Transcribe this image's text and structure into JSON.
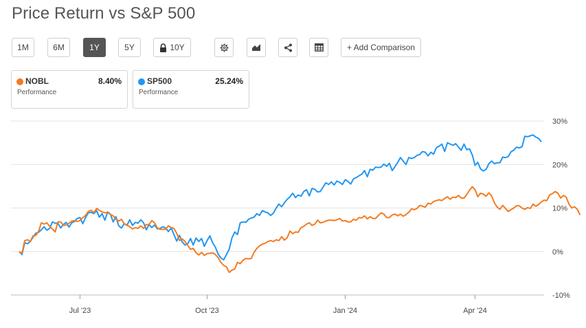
{
  "title": "Price Return vs S&P 500",
  "toolbar": {
    "periods": [
      "1M",
      "6M",
      "1Y",
      "5Y",
      "10Y"
    ],
    "active_period": "1Y",
    "locked_period": "10Y",
    "icons": [
      "gear-icon",
      "area-chart-icon",
      "share-icon",
      "table-icon"
    ],
    "add_comparison_label": "+ Add Comparison"
  },
  "cards": [
    {
      "symbol": "NOBL",
      "value": "8.40%",
      "label": "Performance",
      "color": "#f47b20"
    },
    {
      "symbol": "SP500",
      "value": "25.24%",
      "label": "Performance",
      "color": "#2196f3"
    }
  ],
  "chart_data": {
    "type": "line",
    "y_ticks": [
      "30%",
      "20%",
      "10%",
      "0%",
      "-10%"
    ],
    "x_ticks": [
      {
        "label": "Jul '23",
        "index": 22
      },
      {
        "label": "Oct '23",
        "index": 68
      },
      {
        "label": "Jan '24",
        "index": 118
      },
      {
        "label": "Apr '24",
        "index": 165
      }
    ],
    "ylim": [
      -10,
      30
    ],
    "grid": true,
    "series": [
      {
        "name": "SP500",
        "color": "#2196f3",
        "values": [
          0.0,
          -0.7,
          2.0,
          1.8,
          2.3,
          3.3,
          4.2,
          4.4,
          5.0,
          5.7,
          4.9,
          5.3,
          6.8,
          6.5,
          6.5,
          5.4,
          6.2,
          6.7,
          5.6,
          6.6,
          6.9,
          7.6,
          7.8,
          6.4,
          7.8,
          8.9,
          9.0,
          8.7,
          9.4,
          7.9,
          8.7,
          7.2,
          9.1,
          8.6,
          6.8,
          8.0,
          5.9,
          5.4,
          6.4,
          6.0,
          7.3,
          6.0,
          6.7,
          6.5,
          7.3,
          6.6,
          5.0,
          6.2,
          5.5,
          6.1,
          5.2,
          5.3,
          5.7,
          5.4,
          4.6,
          5.4,
          3.9,
          2.4,
          3.7,
          2.2,
          1.5,
          1.8,
          3.0,
          1.5,
          3.1,
          2.3,
          3.0,
          1.2,
          2.5,
          3.6,
          2.0,
          1.0,
          -0.6,
          -1.5,
          -1.9,
          -0.7,
          0.5,
          3.1,
          4.5,
          3.9,
          6.6,
          6.8,
          6.7,
          7.4,
          7.7,
          7.9,
          8.7,
          8.3,
          9.4,
          9.1,
          8.9,
          8.3,
          8.8,
          10.0,
          10.9,
          10.3,
          11.2,
          12.0,
          12.6,
          13.4,
          12.4,
          13.0,
          12.7,
          13.8,
          14.2,
          12.8,
          14.5,
          14.3,
          13.7,
          13.8,
          14.8,
          15.8,
          15.4,
          16.0,
          15.3,
          16.2,
          15.9,
          15.4,
          16.5,
          16.1,
          15.5,
          16.7,
          17.0,
          17.4,
          17.8,
          18.6,
          17.2,
          18.9,
          18.7,
          19.4,
          19.3,
          19.4,
          20.1,
          19.6,
          20.3,
          18.6,
          19.5,
          20.5,
          21.6,
          20.8,
          20.0,
          21.6,
          21.4,
          21.6,
          22.1,
          22.3,
          23.0,
          22.8,
          22.0,
          22.8,
          22.4,
          23.9,
          24.2,
          24.7,
          23.0,
          25.0,
          24.7,
          24.4,
          24.8,
          24.0,
          23.3,
          24.7,
          23.4,
          23.6,
          22.2,
          19.8,
          20.5,
          19.0,
          18.5,
          18.9,
          20.2,
          20.8,
          20.2,
          20.4,
          20.4,
          21.7,
          21.6,
          21.8,
          22.9,
          23.3,
          24.0,
          23.8,
          24.1,
          26.5,
          26.4,
          26.6,
          26.8,
          26.3,
          26.0,
          25.2
        ]
      },
      {
        "name": "NOBL",
        "color": "#f47b20",
        "values": [
          0.0,
          -0.4,
          2.5,
          2.7,
          2.3,
          3.6,
          3.7,
          4.6,
          6.6,
          6.3,
          6.6,
          5.8,
          5.2,
          4.5,
          6.8,
          6.8,
          6.0,
          6.1,
          6.5,
          7.0,
          7.1,
          6.9,
          7.1,
          7.8,
          8.3,
          9.2,
          9.5,
          8.9,
          9.9,
          9.5,
          9.1,
          8.9,
          9.0,
          8.5,
          8.2,
          7.4,
          7.0,
          7.4,
          6.4,
          6.1,
          5.7,
          5.2,
          5.5,
          5.3,
          5.9,
          5.3,
          6.2,
          6.2,
          7.1,
          6.6,
          5.4,
          5.1,
          5.1,
          5.1,
          5.9,
          5.5,
          5.3,
          4.2,
          2.5,
          2.9,
          2.3,
          1.4,
          0.5,
          0.7,
          -0.3,
          -0.8,
          -0.2,
          -0.9,
          -0.5,
          -0.4,
          -0.3,
          -0.7,
          -1.4,
          -2.5,
          -3.2,
          -3.5,
          -4.8,
          -4.3,
          -4.0,
          -2.5,
          -2.8,
          -2.0,
          -1.6,
          -1.7,
          -1.6,
          -0.2,
          0.7,
          1.3,
          1.7,
          1.9,
          2.3,
          2.5,
          2.3,
          2.7,
          2.5,
          3.4,
          2.6,
          3.2,
          4.7,
          4.1,
          4.5,
          4.4,
          5.5,
          5.8,
          6.3,
          6.6,
          6.0,
          6.3,
          7.2,
          6.6,
          6.7,
          7.0,
          7.2,
          7.2,
          7.1,
          7.3,
          7.6,
          7.0,
          7.1,
          6.8,
          6.8,
          7.4,
          7.2,
          7.8,
          7.7,
          8.2,
          7.5,
          8.0,
          7.6,
          7.6,
          8.3,
          8.9,
          8.6,
          7.8,
          7.8,
          8.4,
          8.6,
          8.2,
          8.6,
          8.1,
          8.5,
          9.0,
          9.8,
          9.6,
          9.9,
          10.6,
          10.4,
          10.2,
          11.1,
          10.9,
          11.5,
          11.7,
          11.9,
          11.7,
          12.2,
          12.6,
          12.0,
          12.5,
          12.4,
          12.9,
          12.3,
          12.3,
          13.1,
          14.1,
          14.9,
          14.2,
          12.6,
          13.4,
          13.2,
          12.7,
          13.5,
          12.8,
          11.2,
          10.2,
          9.7,
          10.6,
          9.9,
          9.2,
          9.6,
          10.0,
          10.5,
          10.5,
          10.0,
          9.7,
          10.1,
          9.9,
          10.9,
          10.4,
          10.8,
          11.4,
          11.8,
          11.7,
          13.0,
          13.3,
          13.8,
          13.4,
          12.3,
          12.9,
          12.5,
          10.9,
          10.0,
          10.3,
          9.7,
          8.4
        ]
      }
    ]
  }
}
